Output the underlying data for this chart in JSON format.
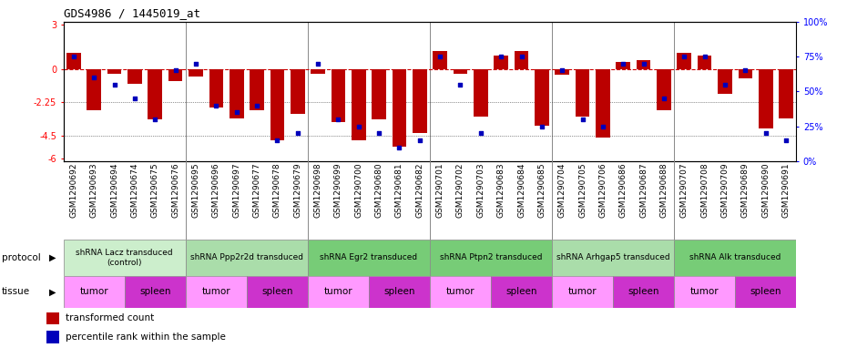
{
  "title": "GDS4986 / 1445019_at",
  "samples": [
    "GSM1290692",
    "GSM1290693",
    "GSM1290694",
    "GSM1290674",
    "GSM1290675",
    "GSM1290676",
    "GSM1290695",
    "GSM1290696",
    "GSM1290697",
    "GSM1290677",
    "GSM1290678",
    "GSM1290679",
    "GSM1290698",
    "GSM1290699",
    "GSM1290700",
    "GSM1290680",
    "GSM1290681",
    "GSM1290682",
    "GSM1290701",
    "GSM1290702",
    "GSM1290703",
    "GSM1290683",
    "GSM1290684",
    "GSM1290685",
    "GSM1290704",
    "GSM1290705",
    "GSM1290706",
    "GSM1290686",
    "GSM1290687",
    "GSM1290688",
    "GSM1290707",
    "GSM1290708",
    "GSM1290709",
    "GSM1290689",
    "GSM1290690",
    "GSM1290691"
  ],
  "bar_values": [
    1.1,
    -2.8,
    -0.3,
    -1.0,
    -3.4,
    -0.8,
    -0.5,
    -2.6,
    -3.3,
    -2.8,
    -4.8,
    -3.0,
    -0.3,
    -3.6,
    -4.8,
    -3.4,
    -5.2,
    -4.3,
    1.2,
    -0.3,
    -3.2,
    0.9,
    1.2,
    -3.8,
    -0.4,
    -3.2,
    -4.6,
    0.5,
    0.6,
    -2.8,
    1.1,
    0.9,
    -1.7,
    -0.6,
    -4.0,
    -3.3
  ],
  "dot_values": [
    75,
    60,
    55,
    45,
    30,
    65,
    70,
    40,
    35,
    40,
    15,
    20,
    70,
    30,
    25,
    20,
    10,
    15,
    75,
    55,
    20,
    75,
    75,
    25,
    65,
    30,
    25,
    70,
    70,
    45,
    75,
    75,
    55,
    65,
    20,
    15
  ],
  "ylim_left": [
    -6.2,
    3.2
  ],
  "ylim_right": [
    0,
    100
  ],
  "yticks_left": [
    3,
    0,
    -2.25,
    -4.5,
    -6
  ],
  "ytick_labels_left": [
    "3",
    "0",
    "-2.25",
    "-4.5",
    "-6"
  ],
  "yticks_right": [
    100,
    75,
    50,
    25,
    0
  ],
  "ytick_labels_right": [
    "100%",
    "75%",
    "50%",
    "25%",
    "0%"
  ],
  "bar_color": "#bb0000",
  "dot_color": "#0000bb",
  "zero_line_color": "#cc0000",
  "hline_color": "#333333",
  "protocol_groups": [
    {
      "label": "shRNA Lacz transduced\n(control)",
      "start": 0,
      "end": 5,
      "color": "#cceecc"
    },
    {
      "label": "shRNA Ppp2r2d transduced",
      "start": 6,
      "end": 11,
      "color": "#aaddaa"
    },
    {
      "label": "shRNA Egr2 transduced",
      "start": 12,
      "end": 17,
      "color": "#77cc77"
    },
    {
      "label": "shRNA Ptpn2 transduced",
      "start": 18,
      "end": 23,
      "color": "#77cc77"
    },
    {
      "label": "shRNA Arhgap5 transduced",
      "start": 24,
      "end": 29,
      "color": "#aaddaa"
    },
    {
      "label": "shRNA Alk transduced",
      "start": 30,
      "end": 35,
      "color": "#77cc77"
    }
  ],
  "tissue_groups": [
    {
      "label": "tumor",
      "start": 0,
      "end": 2,
      "color": "#ff99ff"
    },
    {
      "label": "spleen",
      "start": 3,
      "end": 5,
      "color": "#dd44dd"
    },
    {
      "label": "tumor",
      "start": 6,
      "end": 8,
      "color": "#ff99ff"
    },
    {
      "label": "spleen",
      "start": 9,
      "end": 11,
      "color": "#dd44dd"
    },
    {
      "label": "tumor",
      "start": 12,
      "end": 14,
      "color": "#ff99ff"
    },
    {
      "label": "spleen",
      "start": 15,
      "end": 17,
      "color": "#dd44dd"
    },
    {
      "label": "tumor",
      "start": 18,
      "end": 20,
      "color": "#ff99ff"
    },
    {
      "label": "spleen",
      "start": 21,
      "end": 23,
      "color": "#dd44dd"
    },
    {
      "label": "tumor",
      "start": 24,
      "end": 26,
      "color": "#ff99ff"
    },
    {
      "label": "spleen",
      "start": 27,
      "end": 29,
      "color": "#dd44dd"
    },
    {
      "label": "tumor",
      "start": 30,
      "end": 32,
      "color": "#ff99ff"
    },
    {
      "label": "spleen",
      "start": 33,
      "end": 35,
      "color": "#dd44dd"
    }
  ],
  "legend_items": [
    {
      "label": "transformed count",
      "color": "#bb0000"
    },
    {
      "label": "percentile rank within the sample",
      "color": "#0000bb"
    }
  ],
  "tick_fontsize": 7,
  "sample_fontsize": 6.5,
  "proto_fontsize": 6.5,
  "tissue_fontsize": 7.5
}
